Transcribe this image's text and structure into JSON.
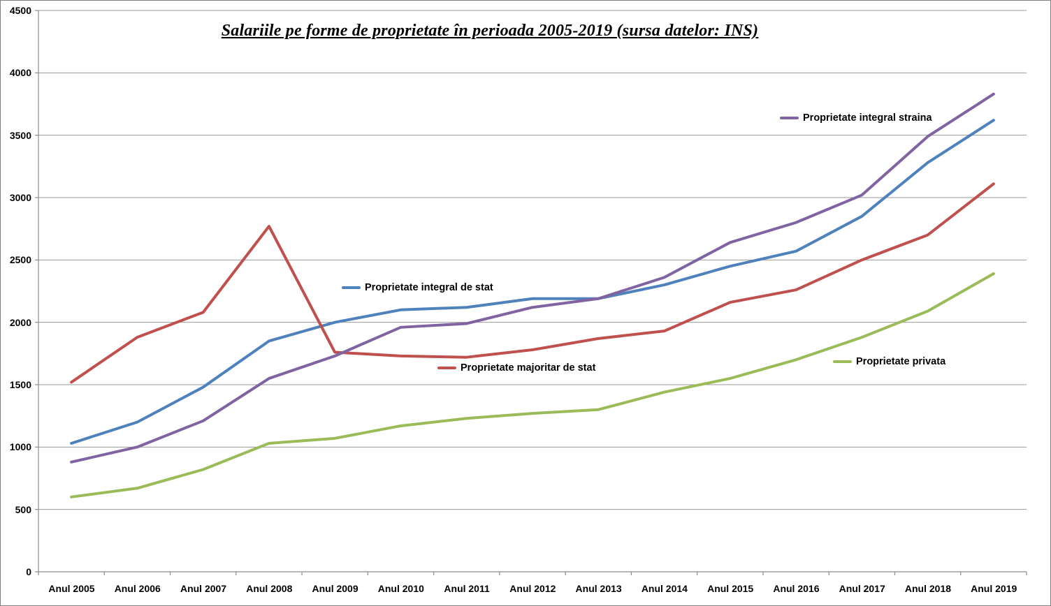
{
  "chart_data": {
    "type": "line",
    "title": "Salariile pe forme de proprietate în perioada 2005-2019 (sursa datelor: INS)",
    "categories": [
      "Anul 2005",
      "Anul 2006",
      "Anul 2007",
      "Anul 2008",
      "Anul 2009",
      "Anul 2010",
      "Anul 2011",
      "Anul 2012",
      "Anul 2013",
      "Anul 2014",
      "Anul 2015",
      "Anul 2016",
      "Anul 2017",
      "Anul 2018",
      "Anul 2019"
    ],
    "series": [
      {
        "name": "Proprietate integral de stat",
        "color": "#4F81BD",
        "values": [
          1030,
          1200,
          1480,
          1850,
          2000,
          2100,
          2120,
          2190,
          2190,
          2300,
          2450,
          2570,
          2850,
          3280,
          3620
        ]
      },
      {
        "name": "Proprietate majoritar de stat",
        "color": "#C0504D",
        "values": [
          1520,
          1880,
          2080,
          2770,
          1760,
          1730,
          1720,
          1780,
          1870,
          1930,
          2160,
          2260,
          2500,
          2700,
          3110
        ]
      },
      {
        "name": "Proprietate privata",
        "color": "#9BBB59",
        "values": [
          600,
          670,
          820,
          1030,
          1070,
          1170,
          1230,
          1270,
          1300,
          1440,
          1550,
          1700,
          1880,
          2090,
          2390
        ]
      },
      {
        "name": "Proprietate integral straina",
        "color": "#8064A2",
        "values": [
          880,
          1000,
          1210,
          1550,
          1730,
          1960,
          1990,
          2120,
          2190,
          2360,
          2640,
          2800,
          3020,
          3490,
          3830
        ]
      }
    ],
    "xlabel": "",
    "ylabel": "",
    "ylim": [
      0,
      4500
    ],
    "y_tick_labels": [
      "0",
      "500",
      "1000",
      "1500",
      "2000",
      "2500",
      "3000",
      "3500",
      "4000",
      "4500"
    ],
    "grid": true,
    "legend_position": "inline-labels-next-to-lines",
    "axis_color": "#8c8c8c",
    "gridline_color": "#9a9a9a"
  }
}
